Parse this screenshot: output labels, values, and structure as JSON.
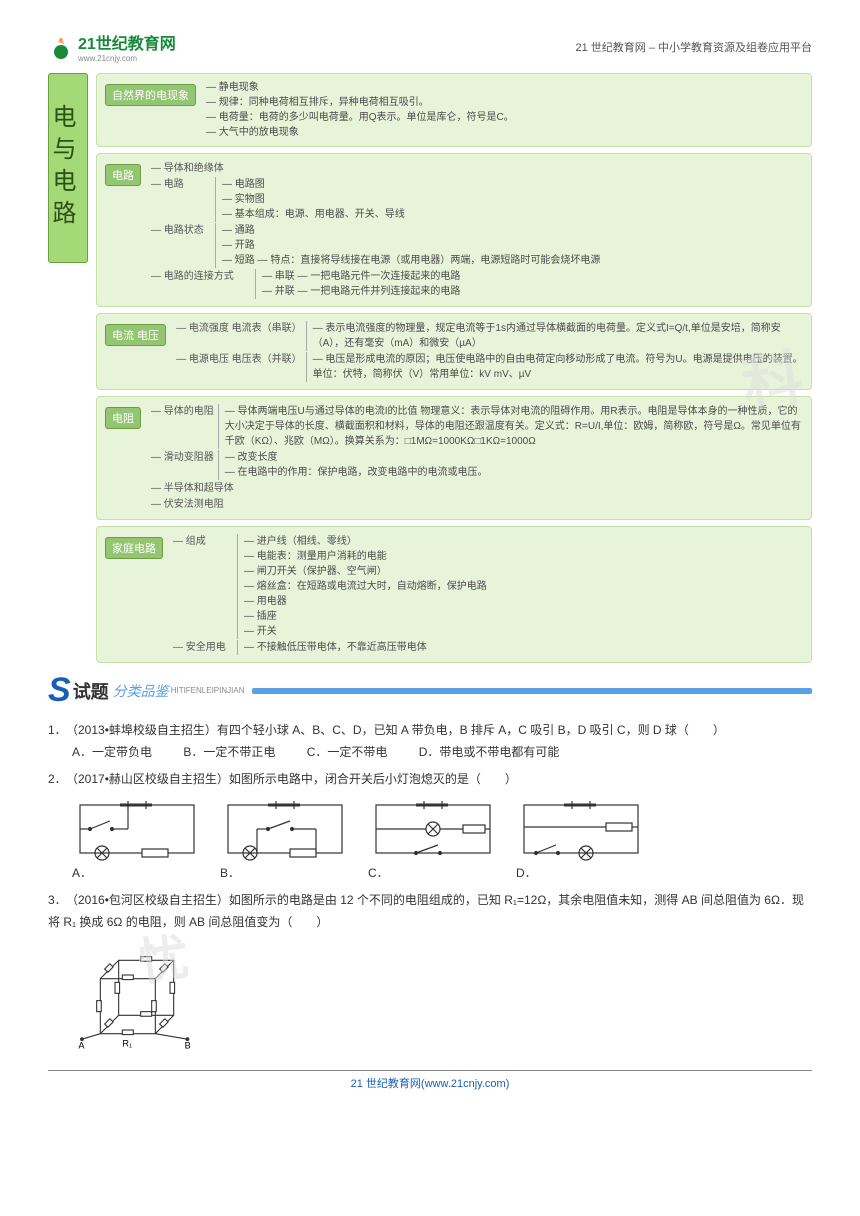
{
  "header": {
    "logo_main": "21世纪教育网",
    "logo_url": "www.21cnjy.com",
    "right": "21 世纪教育网 – 中小学教育资源及组卷应用平台"
  },
  "colors": {
    "root_bg": "#a3d977",
    "root_border": "#6b9e3e",
    "group_bg": "#e8f4d9",
    "group_border": "#c5e0a5",
    "label_bg": "#93c572",
    "accent": "#5aa0e6"
  },
  "mindmap": {
    "root": "电与电路",
    "groups": [
      {
        "label": "自然界的电现象",
        "items": [
          "静电现象",
          "规律：同种电荷相互排斥，异种电荷相互吸引。",
          "电荷量：电荷的多少叫电荷量。用Q表示。单位是库仑，符号是C。",
          "大气中的放电现象"
        ]
      },
      {
        "label": "电路",
        "subs": [
          {
            "name": "导体和绝缘体",
            "items": []
          },
          {
            "name": "电路",
            "items": [
              "电路图",
              "实物图",
              "基本组成：电源、用电器、开关、导线"
            ]
          },
          {
            "name": "电路状态",
            "items": [
              "通路",
              "开路",
              "短路 — 特点：直接将导线接在电源（或用电器）两端，电源短路时可能会烧坏电源"
            ]
          },
          {
            "name": "电路的连接方式",
            "items": [
              "串联 — 一把电路元件一次连接起来的电路",
              "并联 — 一把电路元件并列连接起来的电路"
            ]
          }
        ]
      },
      {
        "label": "电流 电压",
        "subs": [
          {
            "name": "电流强度 电流表（串联）",
            "items": [
              "表示电流强度的物理量，规定电流等于1s内通过导体横截面的电荷量。定义式I=Q/t,单位是安培，简称安（A），还有毫安（mA）和微安（µA）"
            ]
          },
          {
            "name": "电源电压 电压表（并联）",
            "items": [
              "电压是形成电流的原因；电压使电路中的自由电荷定向移动形成了电流。符号为U。电源是提供电压的装置。单位：伏特，简称伏（V）常用单位：kV mV、µV"
            ]
          }
        ]
      },
      {
        "label": "电阻",
        "subs": [
          {
            "name": "导体的电阻",
            "items": [
              "导体两端电压U与通过导体的电流I的比值 物理意义：表示导体对电流的阻碍作用。用R表示。电阻是导体本身的一种性质，它的大小决定于导体的长度、横截面积和材料，导体的电阻还跟温度有关。定义式：R=U/I,单位：欧姆，简称欧，符号是Ω。常见单位有千欧（KΩ）、兆欧（MΩ）。换算关系为：□1MΩ=1000KΩ□1KΩ=1000Ω"
            ]
          },
          {
            "name": "滑动变阻器",
            "items": [
              "改变长度",
              "在电路中的作用：保护电路，改变电路中的电流或电压。"
            ]
          },
          {
            "name": "半导体和超导体",
            "items": []
          },
          {
            "name": "伏安法测电阻",
            "items": []
          }
        ]
      },
      {
        "label": "家庭电路",
        "subs": [
          {
            "name": "组成",
            "items": [
              "进户线（相线、零线）",
              "电能表：测量用户消耗的电能",
              "闸刀开关（保护器、空气闸）",
              "熔丝盒：在短路或电流过大时，自动熔断，保护电路",
              "用电器",
              "插座",
              "开关"
            ]
          },
          {
            "name": "安全用电",
            "items": [
              "不接触低压带电体，不靠近高压带电体"
            ]
          }
        ]
      }
    ]
  },
  "shiti": {
    "title": "试题",
    "sub": "分类品鉴",
    "pinyin": "HITIFENLEIPINJIAN"
  },
  "watermark1": "科",
  "watermark2": "忧",
  "questions": [
    {
      "num": "1．",
      "stem": "（2013•蚌埠校级自主招生）有四个轻小球 A、B、C、D，已知 A 带负电，B 排斥 A，C 吸引 B，D 吸引 C，则 D 球（　　）",
      "opts": [
        "A．一定带负电",
        "B．一定不带正电",
        "C．一定不带电",
        "D．带电或不带电都有可能"
      ]
    },
    {
      "num": "2．",
      "stem": "（2017•赫山区校级自主招生）如图所示电路中，闭合开关后小灯泡熄灭的是（　　）",
      "circuit_labels": [
        "A．",
        "B．",
        "C．",
        "D．"
      ]
    },
    {
      "num": "3．",
      "stem": "（2016•包河区校级自主招生）如图所示的电路是由 12 个不同的电阻组成的，已知 R₁=12Ω，其余电阻值未知，测得 AB 间总阻值为 6Ω．现将 R₁ 换成 6Ω 的电阻，则 AB 间总阻值变为（　　）",
      "fig_labels": {
        "A": "A",
        "B": "B",
        "R1": "R₁"
      }
    }
  ],
  "footer": "21 世纪教育网(www.21cnjy.com)"
}
